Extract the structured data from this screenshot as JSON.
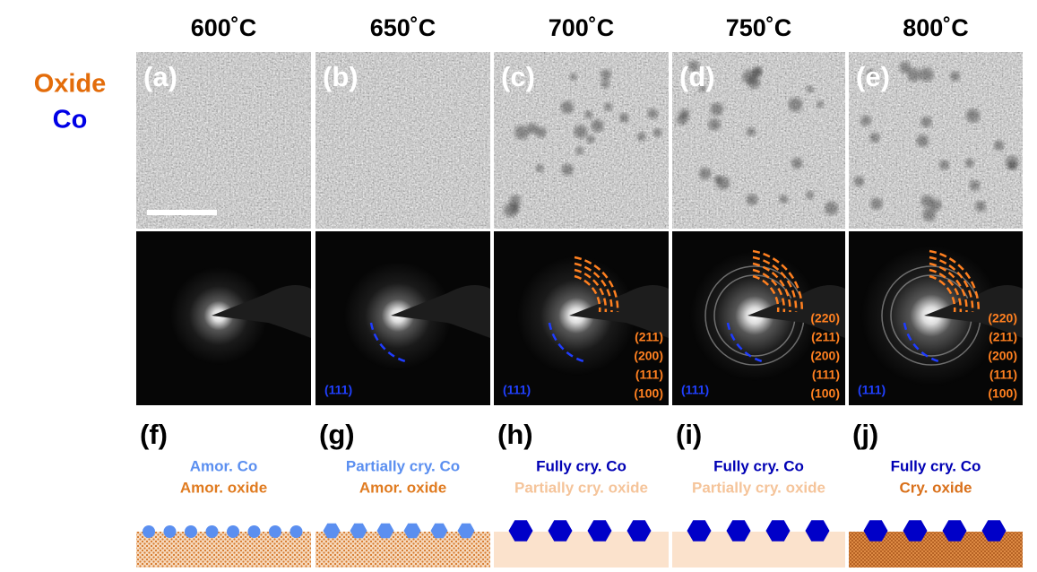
{
  "legend": {
    "oxide": "Oxide",
    "co": "Co"
  },
  "columns": [
    {
      "temperature": "600˚C",
      "tem_label": "(a)",
      "saed_co_label": null,
      "saed_oxide_labels": [],
      "schematic_label": "(f)",
      "co_state": "Amor. Co",
      "oxide_state": "Amor. oxide"
    },
    {
      "temperature": "650˚C",
      "tem_label": "(b)",
      "saed_co_label": "(111)",
      "saed_oxide_labels": [],
      "schematic_label": "(g)",
      "co_state": "Partially cry. Co",
      "oxide_state": "Amor. oxide"
    },
    {
      "temperature": "700˚C",
      "tem_label": "(c)",
      "saed_co_label": "(111)",
      "saed_oxide_labels": [
        "(211)",
        "(200)",
        "(111)",
        "(100)"
      ],
      "schematic_label": "(h)",
      "co_state": "Fully cry. Co",
      "oxide_state": "Partially cry. oxide"
    },
    {
      "temperature": "750˚C",
      "tem_label": "(d)",
      "saed_co_label": "(111)",
      "saed_oxide_labels": [
        "(220)",
        "(211)",
        "(200)",
        "(111)",
        "(100)"
      ],
      "schematic_label": "(i)",
      "co_state": "Fully cry. Co",
      "oxide_state": "Partially cry. oxide"
    },
    {
      "temperature": "800˚C",
      "tem_label": "(e)",
      "saed_co_label": "(111)",
      "saed_oxide_labels": [
        "(220)",
        "(211)",
        "(200)",
        "(111)",
        "(100)"
      ],
      "schematic_label": "(j)",
      "co_state": "Fully cry. Co",
      "oxide_state": "Cry. oxide"
    }
  ]
}
